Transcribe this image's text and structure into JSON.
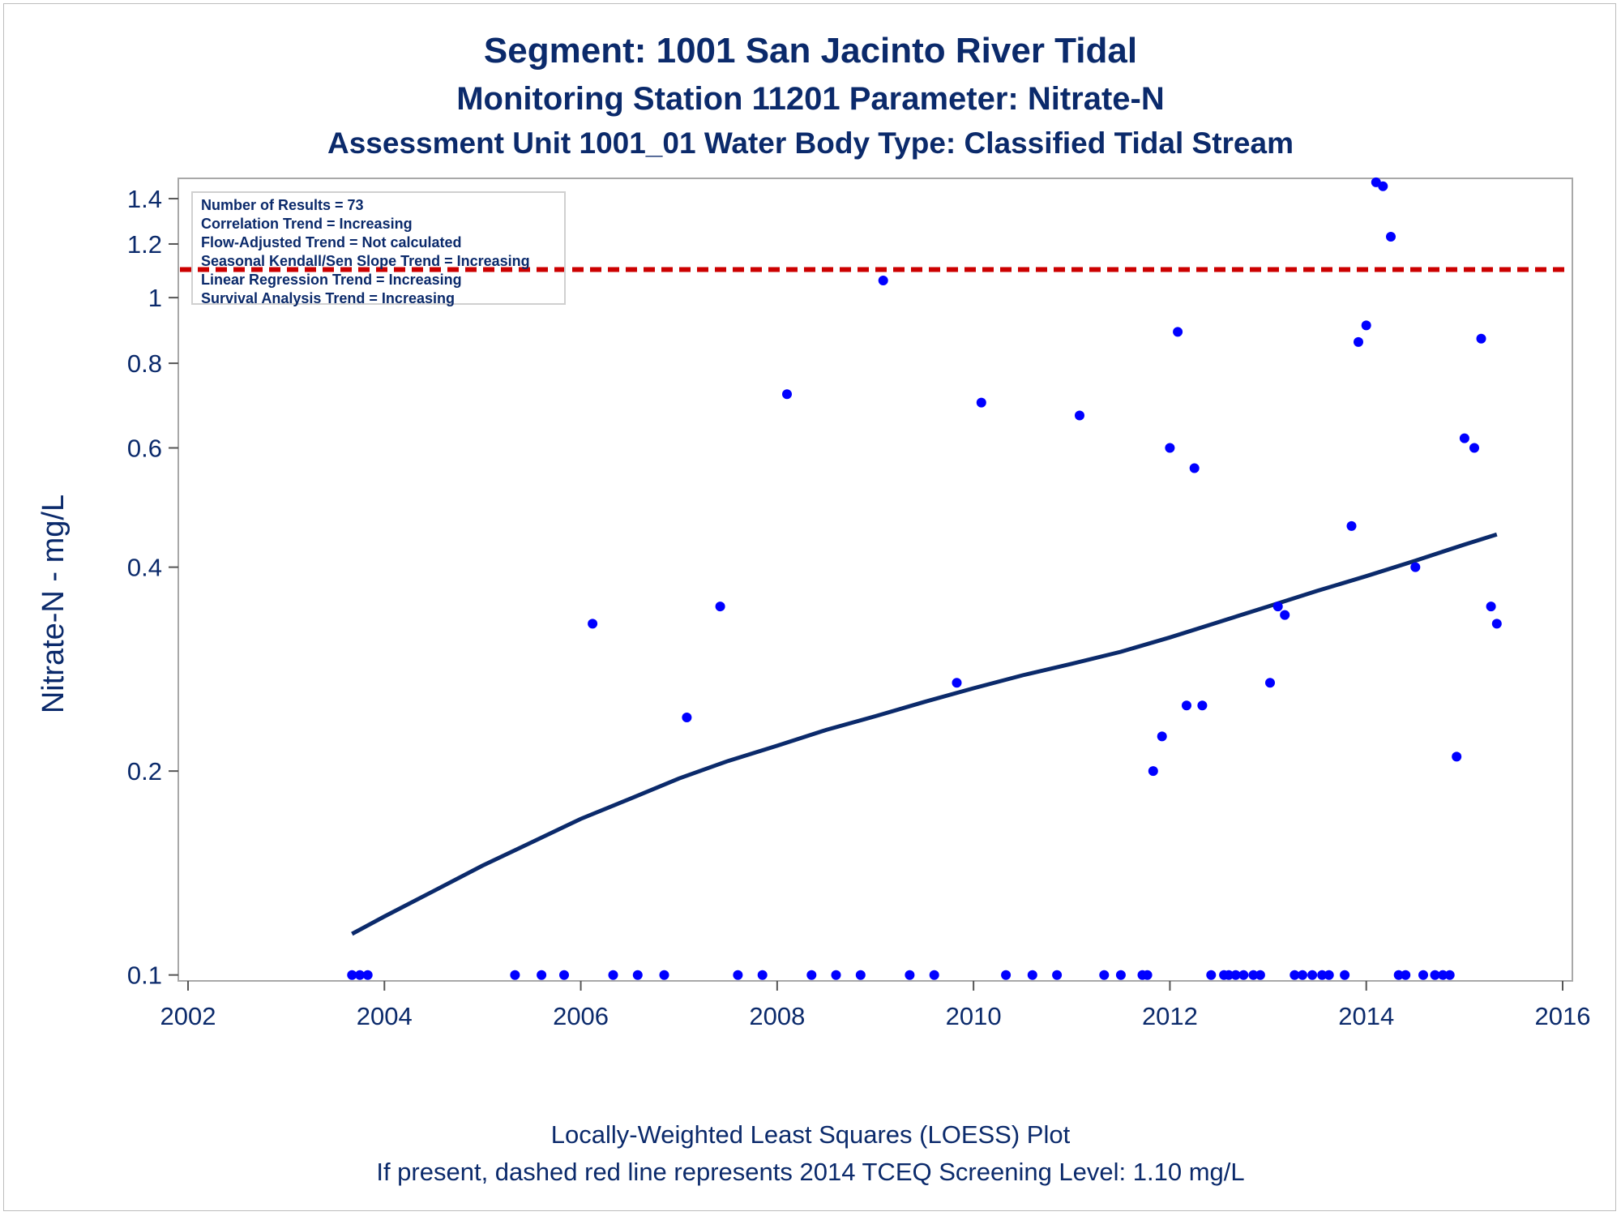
{
  "titles": {
    "line1": "Segment: 1001  San Jacinto River Tidal",
    "line2": "Monitoring Station 11201 Parameter: Nitrate-N",
    "line3": "Assessment Unit 1001_01   Water Body Type: Classified Tidal Stream"
  },
  "footer": {
    "line1": "Locally-Weighted Least Squares (LOESS) Plot",
    "line2": "If present, dashed red line represents 2014 TCEQ Screening Level: 1.10 mg/L"
  },
  "legend": [
    "Number of Results = 73",
    "Correlation Trend = Increasing",
    "Flow-Adjusted Trend = Not calculated",
    "Seasonal Kendall/Sen Slope Trend = Increasing",
    "Linear Regression Trend = Increasing",
    "Survival Analysis Trend = Increasing"
  ],
  "chart_data": {
    "type": "scatter",
    "ylabel": "Nitrate-N - mg/L",
    "xlabel": "",
    "x_ticks": [
      "2002",
      "2004",
      "2006",
      "2008",
      "2010",
      "2012",
      "2014",
      "2016"
    ],
    "y_ticks": [
      "0.1",
      "0.2",
      "0.4",
      "0.6",
      "0.8",
      "1",
      "1.2",
      "1.4"
    ],
    "xlim": [
      2002,
      2016
    ],
    "ylim": [
      0.098,
      1.5
    ],
    "y_scale": "log",
    "screening_level": 1.1,
    "colors": {
      "points": "#0000ff",
      "trend": "#0b2a6b",
      "screening": "#cc0000",
      "text": "#0b2a6b"
    },
    "points": [
      [
        2003.67,
        0.1
      ],
      [
        2003.75,
        0.1
      ],
      [
        2003.83,
        0.1
      ],
      [
        2005.33,
        0.1
      ],
      [
        2005.6,
        0.1
      ],
      [
        2005.83,
        0.1
      ],
      [
        2006.12,
        0.33
      ],
      [
        2006.33,
        0.1
      ],
      [
        2006.58,
        0.1
      ],
      [
        2006.85,
        0.1
      ],
      [
        2007.08,
        0.24
      ],
      [
        2007.42,
        0.35
      ],
      [
        2007.6,
        0.1
      ],
      [
        2007.85,
        0.1
      ],
      [
        2008.1,
        0.72
      ],
      [
        2008.35,
        0.1
      ],
      [
        2008.6,
        0.1
      ],
      [
        2008.85,
        0.1
      ],
      [
        2009.08,
        1.06
      ],
      [
        2009.35,
        0.1
      ],
      [
        2009.6,
        0.1
      ],
      [
        2009.83,
        0.27
      ],
      [
        2010.08,
        0.7
      ],
      [
        2010.33,
        0.1
      ],
      [
        2010.6,
        0.1
      ],
      [
        2010.85,
        0.1
      ],
      [
        2011.08,
        0.67
      ],
      [
        2011.33,
        0.1
      ],
      [
        2011.5,
        0.1
      ],
      [
        2011.72,
        0.1
      ],
      [
        2011.77,
        0.1
      ],
      [
        2011.83,
        0.2
      ],
      [
        2011.92,
        0.225
      ],
      [
        2012.0,
        0.6
      ],
      [
        2012.08,
        0.89
      ],
      [
        2012.17,
        0.25
      ],
      [
        2012.25,
        0.56
      ],
      [
        2012.33,
        0.25
      ],
      [
        2012.42,
        0.1
      ],
      [
        2012.55,
        0.1
      ],
      [
        2012.6,
        0.1
      ],
      [
        2012.67,
        0.1
      ],
      [
        2012.75,
        0.1
      ],
      [
        2012.85,
        0.1
      ],
      [
        2012.92,
        0.1
      ],
      [
        2013.02,
        0.27
      ],
      [
        2013.1,
        0.35
      ],
      [
        2013.17,
        0.34
      ],
      [
        2013.27,
        0.1
      ],
      [
        2013.35,
        0.1
      ],
      [
        2013.45,
        0.1
      ],
      [
        2013.55,
        0.1
      ],
      [
        2013.62,
        0.1
      ],
      [
        2013.78,
        0.1
      ],
      [
        2013.85,
        0.46
      ],
      [
        2013.92,
        0.86
      ],
      [
        2014.0,
        0.91
      ],
      [
        2014.1,
        1.48
      ],
      [
        2014.17,
        1.46
      ],
      [
        2014.25,
        1.23
      ],
      [
        2014.33,
        0.1
      ],
      [
        2014.4,
        0.1
      ],
      [
        2014.5,
        0.4
      ],
      [
        2014.58,
        0.1
      ],
      [
        2014.7,
        0.1
      ],
      [
        2014.78,
        0.1
      ],
      [
        2014.85,
        0.1
      ],
      [
        2014.92,
        0.21
      ],
      [
        2015.0,
        0.62
      ],
      [
        2015.1,
        0.6
      ],
      [
        2015.17,
        0.87
      ],
      [
        2015.27,
        0.35
      ],
      [
        2015.33,
        0.33
      ]
    ],
    "trend": [
      [
        2003.67,
        0.115
      ],
      [
        2004.0,
        0.122
      ],
      [
        2004.5,
        0.133
      ],
      [
        2005.0,
        0.145
      ],
      [
        2005.5,
        0.157
      ],
      [
        2006.0,
        0.17
      ],
      [
        2006.5,
        0.182
      ],
      [
        2007.0,
        0.195
      ],
      [
        2007.5,
        0.207
      ],
      [
        2008.0,
        0.218
      ],
      [
        2008.5,
        0.23
      ],
      [
        2009.0,
        0.241
      ],
      [
        2009.5,
        0.253
      ],
      [
        2010.0,
        0.265
      ],
      [
        2010.5,
        0.277
      ],
      [
        2011.0,
        0.288
      ],
      [
        2011.5,
        0.3
      ],
      [
        2012.0,
        0.315
      ],
      [
        2012.5,
        0.332
      ],
      [
        2013.0,
        0.35
      ],
      [
        2013.5,
        0.369
      ],
      [
        2014.0,
        0.388
      ],
      [
        2014.5,
        0.409
      ],
      [
        2015.0,
        0.432
      ],
      [
        2015.33,
        0.447
      ]
    ]
  }
}
